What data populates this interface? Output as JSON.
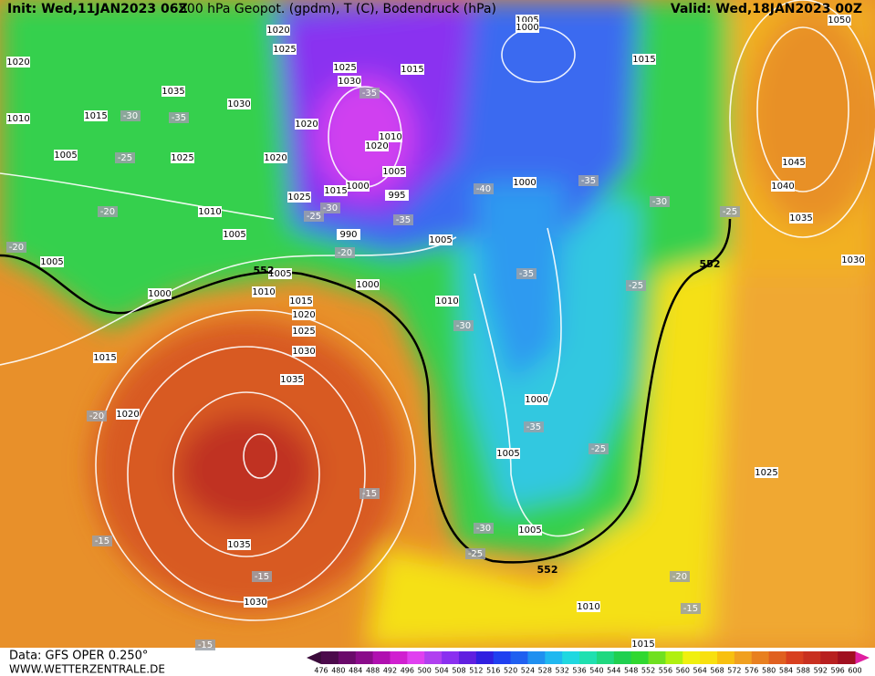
{
  "header": {
    "init": "Init: Wed,11JAN2023 06Z",
    "title": "500 hPa Geopot. (gpdm), T (C), Bodendruck (hPa)",
    "valid": "Valid: Wed,18JAN2023 00Z"
  },
  "footer": {
    "source": "Data: GFS OPER 0.250°",
    "website": "WWW.WETTERZENTRALE.DE"
  },
  "colorbar": {
    "labels": [
      476,
      480,
      484,
      488,
      492,
      496,
      500,
      504,
      508,
      512,
      516,
      520,
      524,
      528,
      532,
      536,
      540,
      544,
      548,
      552,
      556,
      560,
      564,
      568,
      572,
      576,
      580,
      584,
      588,
      592,
      596,
      600
    ]
  },
  "isobar_labels": [
    1020,
    1010,
    1035,
    1015,
    1005,
    1025,
    1010,
    1005,
    1005,
    1000,
    1005,
    1010,
    1015,
    1020,
    1025,
    1030,
    1035,
    1015,
    1020,
    1035,
    1030,
    1000,
    990,
    1005,
    1010,
    1000,
    1005,
    1005,
    1010,
    1015,
    1025,
    1030,
    1035,
    1040,
    1045,
    1050,
    1015,
    1000,
    1020,
    1025,
    1025,
    1030,
    1015,
    1030,
    1020,
    1010,
    1020,
    1020,
    1005,
    1000,
    995,
    1015,
    1025,
    1005,
    1000
  ],
  "temperature_labels": [
    -30,
    -35,
    -25,
    -20,
    -20,
    -35,
    -40,
    -35,
    -30,
    -25,
    -35,
    -25,
    -30,
    -20,
    -35,
    -25,
    -30,
    -35,
    -25,
    -20,
    -15,
    -15,
    -15,
    -30,
    -25,
    -20,
    -15,
    -15
  ],
  "geopotential_labels": [
    552,
    552,
    552
  ]
}
